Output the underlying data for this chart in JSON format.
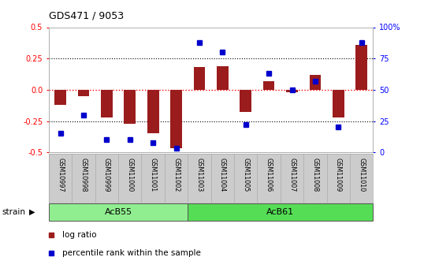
{
  "title": "GDS471 / 9053",
  "samples": [
    "GSM10997",
    "GSM10998",
    "GSM10999",
    "GSM11000",
    "GSM11001",
    "GSM11002",
    "GSM11003",
    "GSM11004",
    "GSM11005",
    "GSM11006",
    "GSM11007",
    "GSM11008",
    "GSM11009",
    "GSM11010"
  ],
  "log_ratio": [
    -0.12,
    -0.05,
    -0.22,
    -0.27,
    -0.35,
    -0.47,
    0.18,
    0.19,
    -0.18,
    0.07,
    -0.02,
    0.12,
    -0.22,
    0.36
  ],
  "percentile": [
    15,
    30,
    10,
    10,
    8,
    3,
    88,
    80,
    22,
    63,
    50,
    57,
    20,
    88
  ],
  "groups": [
    {
      "label": "AcB55",
      "start": 0,
      "end": 5,
      "color": "#90ee90"
    },
    {
      "label": "AcB61",
      "start": 6,
      "end": 13,
      "color": "#55dd55"
    }
  ],
  "ylim_left": [
    -0.5,
    0.5
  ],
  "ylim_right": [
    0,
    100
  ],
  "yticks_left": [
    -0.5,
    -0.25,
    0.0,
    0.25,
    0.5
  ],
  "yticks_right": [
    0,
    25,
    50,
    75,
    100
  ],
  "ytick_labels_right": [
    "0",
    "25",
    "50",
    "75",
    "100%"
  ],
  "hlines": [
    0.25,
    0.0,
    -0.25
  ],
  "bar_color": "#9B1C1C",
  "dot_color": "#0000CC",
  "bg_color": "#ffffff",
  "plot_bg": "#ffffff",
  "strain_label": "strain",
  "legend_items": [
    "log ratio",
    "percentile rank within the sample"
  ]
}
